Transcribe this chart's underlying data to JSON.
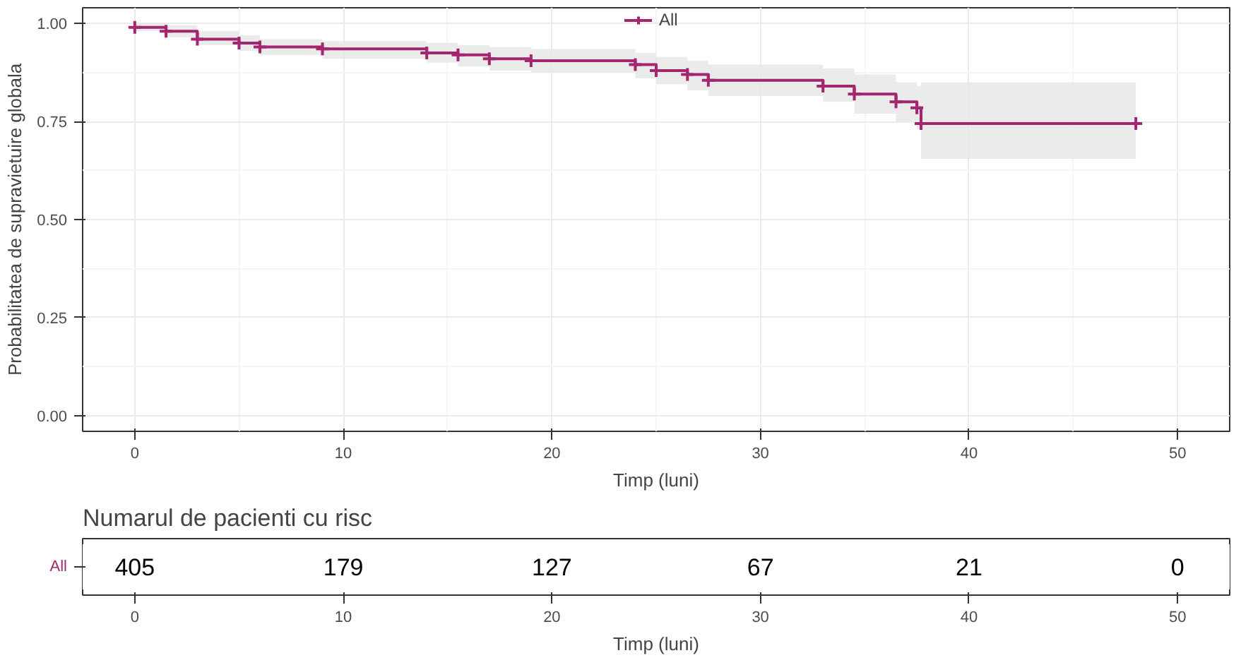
{
  "chart_data": [
    {
      "type": "step",
      "xlabel": "Timp (luni)",
      "ylabel": "Probabilitatea de supravietuire globala",
      "x": [
        0,
        1.5,
        3,
        5,
        6,
        9,
        14,
        15.5,
        17,
        19,
        24,
        25,
        26.5,
        27.5,
        33,
        34.5,
        36.5,
        37.5,
        37.7,
        48
      ],
      "series": [
        {
          "name": "All",
          "color": "#a3266f",
          "values": [
            0.99,
            0.98,
            0.96,
            0.95,
            0.94,
            0.935,
            0.925,
            0.92,
            0.91,
            0.905,
            0.895,
            0.88,
            0.87,
            0.855,
            0.84,
            0.82,
            0.8,
            0.785,
            0.745,
            0.745
          ],
          "lower": [
            0.98,
            0.965,
            0.945,
            0.93,
            0.92,
            0.91,
            0.9,
            0.89,
            0.88,
            0.875,
            0.86,
            0.845,
            0.83,
            0.815,
            0.8,
            0.77,
            0.75,
            0.73,
            0.655,
            0.655
          ],
          "upper": [
            1.0,
            0.995,
            0.98,
            0.97,
            0.96,
            0.955,
            0.95,
            0.945,
            0.94,
            0.935,
            0.925,
            0.915,
            0.905,
            0.895,
            0.885,
            0.87,
            0.85,
            0.84,
            0.85,
            0.85
          ]
        }
      ],
      "xlim": [
        -2.5,
        52.5
      ],
      "xticks": [
        0,
        10,
        20,
        30,
        40,
        50
      ],
      "ylim": [
        -0.04,
        1.04
      ],
      "yticks": [
        {
          "value": 0,
          "label": "0.00"
        },
        {
          "value": 0.25,
          "label": "0.25"
        },
        {
          "value": 0.5,
          "label": "0.50"
        },
        {
          "value": 0.75,
          "label": "0.75"
        },
        {
          "value": 1,
          "label": "1.00"
        }
      ],
      "grid": true,
      "legend": "top",
      "marker": "cross",
      "line_style": "solid"
    },
    {
      "type": "heatmap",
      "title": "Numarul de pacienti cu risc",
      "xlabel": "Timp (luni)",
      "categories": [
        "0",
        "10",
        "20",
        "30",
        "40",
        "50"
      ],
      "y_categories": [
        "All"
      ],
      "cells": [
        [
          405,
          179,
          127,
          67,
          21,
          0
        ]
      ],
      "data_labels": true
    }
  ]
}
